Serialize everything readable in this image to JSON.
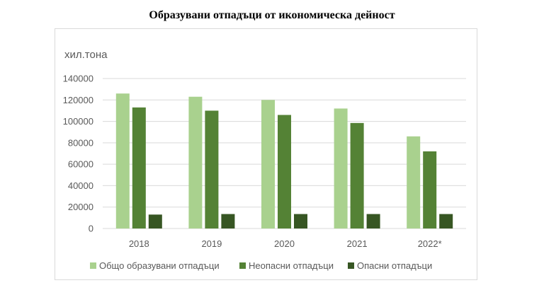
{
  "title": "Образувани отпадъци от икономическа дейност",
  "chart_data": {
    "type": "bar",
    "unit_label": "хил.тона",
    "categories": [
      "2018",
      "2019",
      "2020",
      "2021",
      "2022*"
    ],
    "series": [
      {
        "name": "Общо образувани отпадъци",
        "color": "#a9d18e",
        "values": [
          126000,
          123000,
          120000,
          112000,
          86000
        ]
      },
      {
        "name": "Неопасни отпадъци",
        "color": "#548235",
        "values": [
          113000,
          110000,
          106000,
          98500,
          72000
        ]
      },
      {
        "name": "Опасни отпадъци",
        "color": "#375623",
        "values": [
          13000,
          13500,
          13500,
          13500,
          13500
        ]
      }
    ],
    "ylim": [
      0,
      140000
    ],
    "yticks": [
      "0",
      "20000",
      "40000",
      "60000",
      "80000",
      "100000",
      "120000",
      "140000"
    ],
    "grid": true,
    "legend": "bottom"
  }
}
